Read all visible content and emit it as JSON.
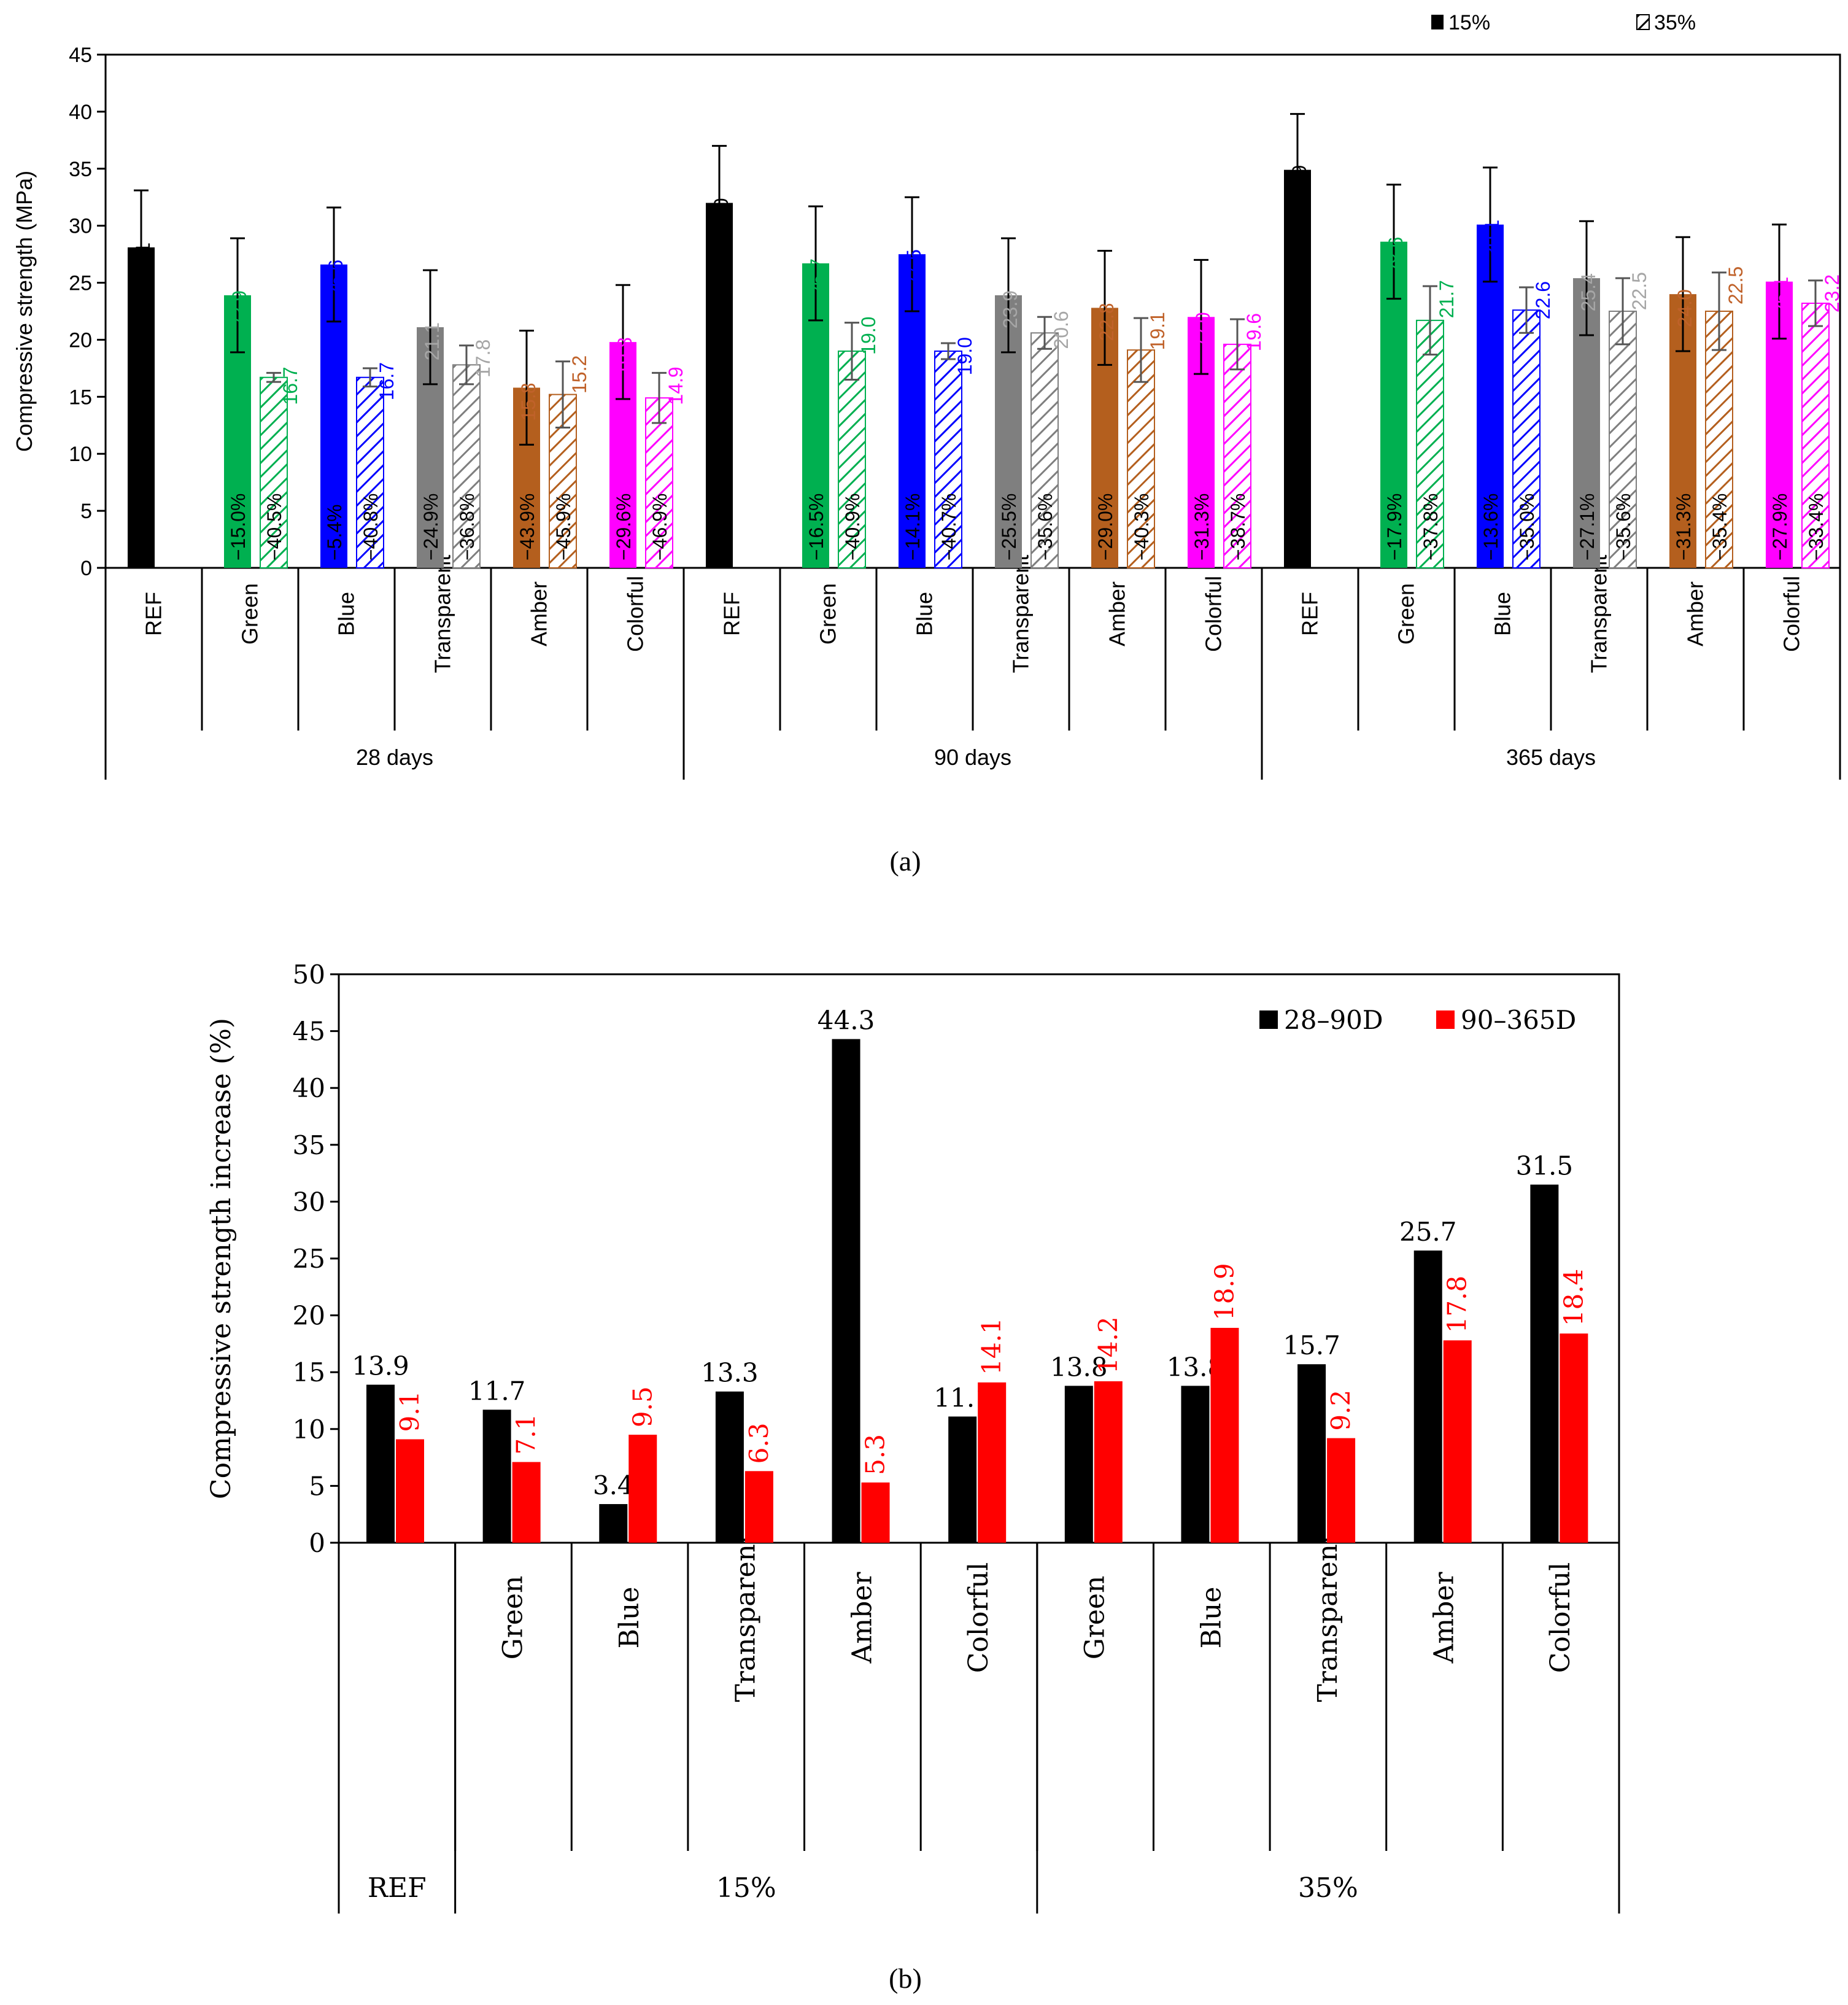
{
  "chart_data": [
    {
      "panel": "(a)",
      "type": "bar",
      "ylabel": "Compressive strength (MPa)",
      "ylim": [
        0,
        45
      ],
      "yticks": [
        0,
        5,
        10,
        15,
        20,
        25,
        30,
        35,
        40,
        45
      ],
      "legend": {
        "position": "top-right",
        "entries": [
          {
            "label": "15%",
            "pattern": "solid"
          },
          {
            "label": "35%",
            "pattern": "hatched"
          }
        ]
      },
      "groups": [
        "28 days",
        "90 days",
        "365 days"
      ],
      "categories": [
        "REF",
        "Green",
        "Blue",
        "Transparent",
        "Amber",
        "Colorful"
      ],
      "colors": {
        "REF": "#000000",
        "Green": "#00b050",
        "Blue": "#0000ff",
        "Transparent": "#7f7f7f",
        "Amber": "#b45f1e",
        "Colorful": "#ff00ff"
      },
      "label_colors": {
        "REF": "#000000",
        "Green": "#00b050",
        "Blue": "#0000ff",
        "Transparent": "#a6a6a6",
        "Amber": "#c0622a",
        "Colorful": "#ff00ff"
      },
      "data": [
        {
          "group": "28 days",
          "category": "REF",
          "v15": 28.1,
          "v15_label": "28.1",
          "err15": 5.0,
          "v35": null
        },
        {
          "group": "28 days",
          "category": "Green",
          "v15": 23.9,
          "v15_label": "23.9",
          "err15": 5.0,
          "pct15": "−15.0%",
          "v35": 16.7,
          "v35_label": "16.7",
          "err35": 0.4,
          "pct35": "−40.5%"
        },
        {
          "group": "28 days",
          "category": "Blue",
          "v15": 26.6,
          "v15_label": "26.6",
          "err15": 5.0,
          "pct15": "−5.4%",
          "v35": 16.7,
          "v35_label": "16.7",
          "err35": 0.8,
          "pct35": "−40.8%"
        },
        {
          "group": "28 days",
          "category": "Transparent",
          "v15": 21.1,
          "v15_label": "21.1",
          "err15": 5.0,
          "pct15": "−24.9%",
          "v35": 17.8,
          "v35_label": "17.8",
          "err35": 1.7,
          "pct35": "−36.8%"
        },
        {
          "group": "28 days",
          "category": "Amber",
          "v15": 15.8,
          "v15_label": "15.8",
          "err15": 5.0,
          "pct15": "−43.9%",
          "v35": 15.2,
          "v35_label": "15.2",
          "err35": 2.9,
          "pct35": "−45.9%"
        },
        {
          "group": "28 days",
          "category": "Colorful",
          "v15": 19.8,
          "v15_label": "19.8",
          "err15": 5.0,
          "pct15": "−29.6%",
          "v35": 14.9,
          "v35_label": "14.9",
          "err35": 2.2,
          "pct35": "−46.9%"
        },
        {
          "group": "90 days",
          "category": "REF",
          "v15": 32.0,
          "v15_label": "32.0",
          "err15": 5.0,
          "v35": null
        },
        {
          "group": "90 days",
          "category": "Green",
          "v15": 26.7,
          "v15_label": "26.7",
          "err15": 5.0,
          "pct15": "−16.5%",
          "v35": 19.0,
          "v35_label": "19.0",
          "err35": 2.5,
          "pct35": "−40.9%"
        },
        {
          "group": "90 days",
          "category": "Blue",
          "v15": 27.5,
          "v15_label": "27.5",
          "err15": 5.0,
          "pct15": "−14.1%",
          "v35": 19.0,
          "v35_label": "19.0",
          "err35": 0.7,
          "pct35": "−40.7%"
        },
        {
          "group": "90 days",
          "category": "Transparent",
          "v15": 23.9,
          "v15_label": "23.9",
          "err15": 5.0,
          "pct15": "−25.5%",
          "v35": 20.6,
          "v35_label": "20.6",
          "err35": 1.4,
          "pct35": "−35.6%"
        },
        {
          "group": "90 days",
          "category": "Amber",
          "v15": 22.8,
          "v15_label": "22.8",
          "err15": 5.0,
          "pct15": "−29.0%",
          "v35": 19.1,
          "v35_label": "19.1",
          "err35": 2.8,
          "pct35": "−40.3%"
        },
        {
          "group": "90 days",
          "category": "Colorful",
          "v15": 22.0,
          "v15_label": "22.0",
          "err15": 5.0,
          "pct15": "−31.3%",
          "v35": 19.6,
          "v35_label": "19.6",
          "err35": 2.2,
          "pct35": "−38.7%"
        },
        {
          "group": "365 days",
          "category": "REF",
          "v15": 34.9,
          "v15_label": "34.9",
          "err15": 4.9,
          "v35": null
        },
        {
          "group": "365 days",
          "category": "Green",
          "v15": 28.6,
          "v15_label": "28.6",
          "err15": 5.0,
          "pct15": "−17.9%",
          "v35": 21.7,
          "v35_label": "21.7",
          "err35": 3.0,
          "pct35": "−37.8%"
        },
        {
          "group": "365 days",
          "category": "Blue",
          "v15": 30.1,
          "v15_label": "30.1",
          "err15": 5.0,
          "pct15": "−13.6%",
          "v35": 22.6,
          "v35_label": "22.6",
          "err35": 2.0,
          "pct35": "−35.0%"
        },
        {
          "group": "365 days",
          "category": "Transparent",
          "v15": 25.4,
          "v15_label": "25.4",
          "err15": 5.0,
          "pct15": "−27.1%",
          "v35": 22.5,
          "v35_label": "22.5",
          "err35": 2.9,
          "pct35": "−35.6%"
        },
        {
          "group": "365 days",
          "category": "Amber",
          "v15": 24.0,
          "v15_label": "24.0",
          "err15": 5.0,
          "pct15": "−31.3%",
          "v35": 22.5,
          "v35_label": "22.5",
          "err35": 3.4,
          "pct35": "−35.4%"
        },
        {
          "group": "365 days",
          "category": "Colorful",
          "v15": 25.1,
          "v15_label": "25.1",
          "err15": 5.0,
          "pct15": "−27.9%",
          "v35": 23.2,
          "v35_label": "23.2",
          "err35": 2.0,
          "pct35": "−33.4%"
        }
      ]
    },
    {
      "panel": "(b)",
      "type": "bar",
      "ylabel": "Compressive strength increase (%)",
      "ylim": [
        0,
        50
      ],
      "yticks": [
        0,
        5,
        10,
        15,
        20,
        25,
        30,
        35,
        40,
        45,
        50
      ],
      "legend": {
        "position": "top-right"
      },
      "series": [
        {
          "name": "28–90D",
          "color": "#000000",
          "values": [
            13.9,
            11.7,
            3.4,
            13.3,
            44.3,
            11.1,
            13.8,
            13.8,
            15.7,
            25.7,
            31.5
          ]
        },
        {
          "name": "90–365D",
          "color": "#ff0000",
          "values": [
            9.1,
            7.1,
            9.5,
            6.3,
            5.3,
            14.1,
            14.2,
            18.9,
            9.2,
            17.8,
            18.4
          ]
        }
      ],
      "series_labels": [
        [
          "13.9",
          "11.7",
          "3.4",
          "13.3",
          "44.3",
          "11.1",
          "13.8",
          "13.8",
          "15.7",
          "25.7",
          "31.5"
        ],
        [
          "9.1",
          "7.1",
          "9.5",
          "6.3",
          "5.3",
          "14.1",
          "14.2",
          "18.9",
          "9.2",
          "17.8",
          "18.4"
        ]
      ],
      "categories": [
        "",
        "Green",
        "Blue",
        "Transparent",
        "Amber",
        "Colorful",
        "Green",
        "Blue",
        "Transparent",
        "Amber",
        "Colorful"
      ],
      "groups": [
        {
          "label": "REF",
          "count": 1
        },
        {
          "label": "15%",
          "count": 5
        },
        {
          "label": "35%",
          "count": 5
        }
      ]
    }
  ],
  "captions": {
    "a": "(a)",
    "b": "(b)"
  }
}
